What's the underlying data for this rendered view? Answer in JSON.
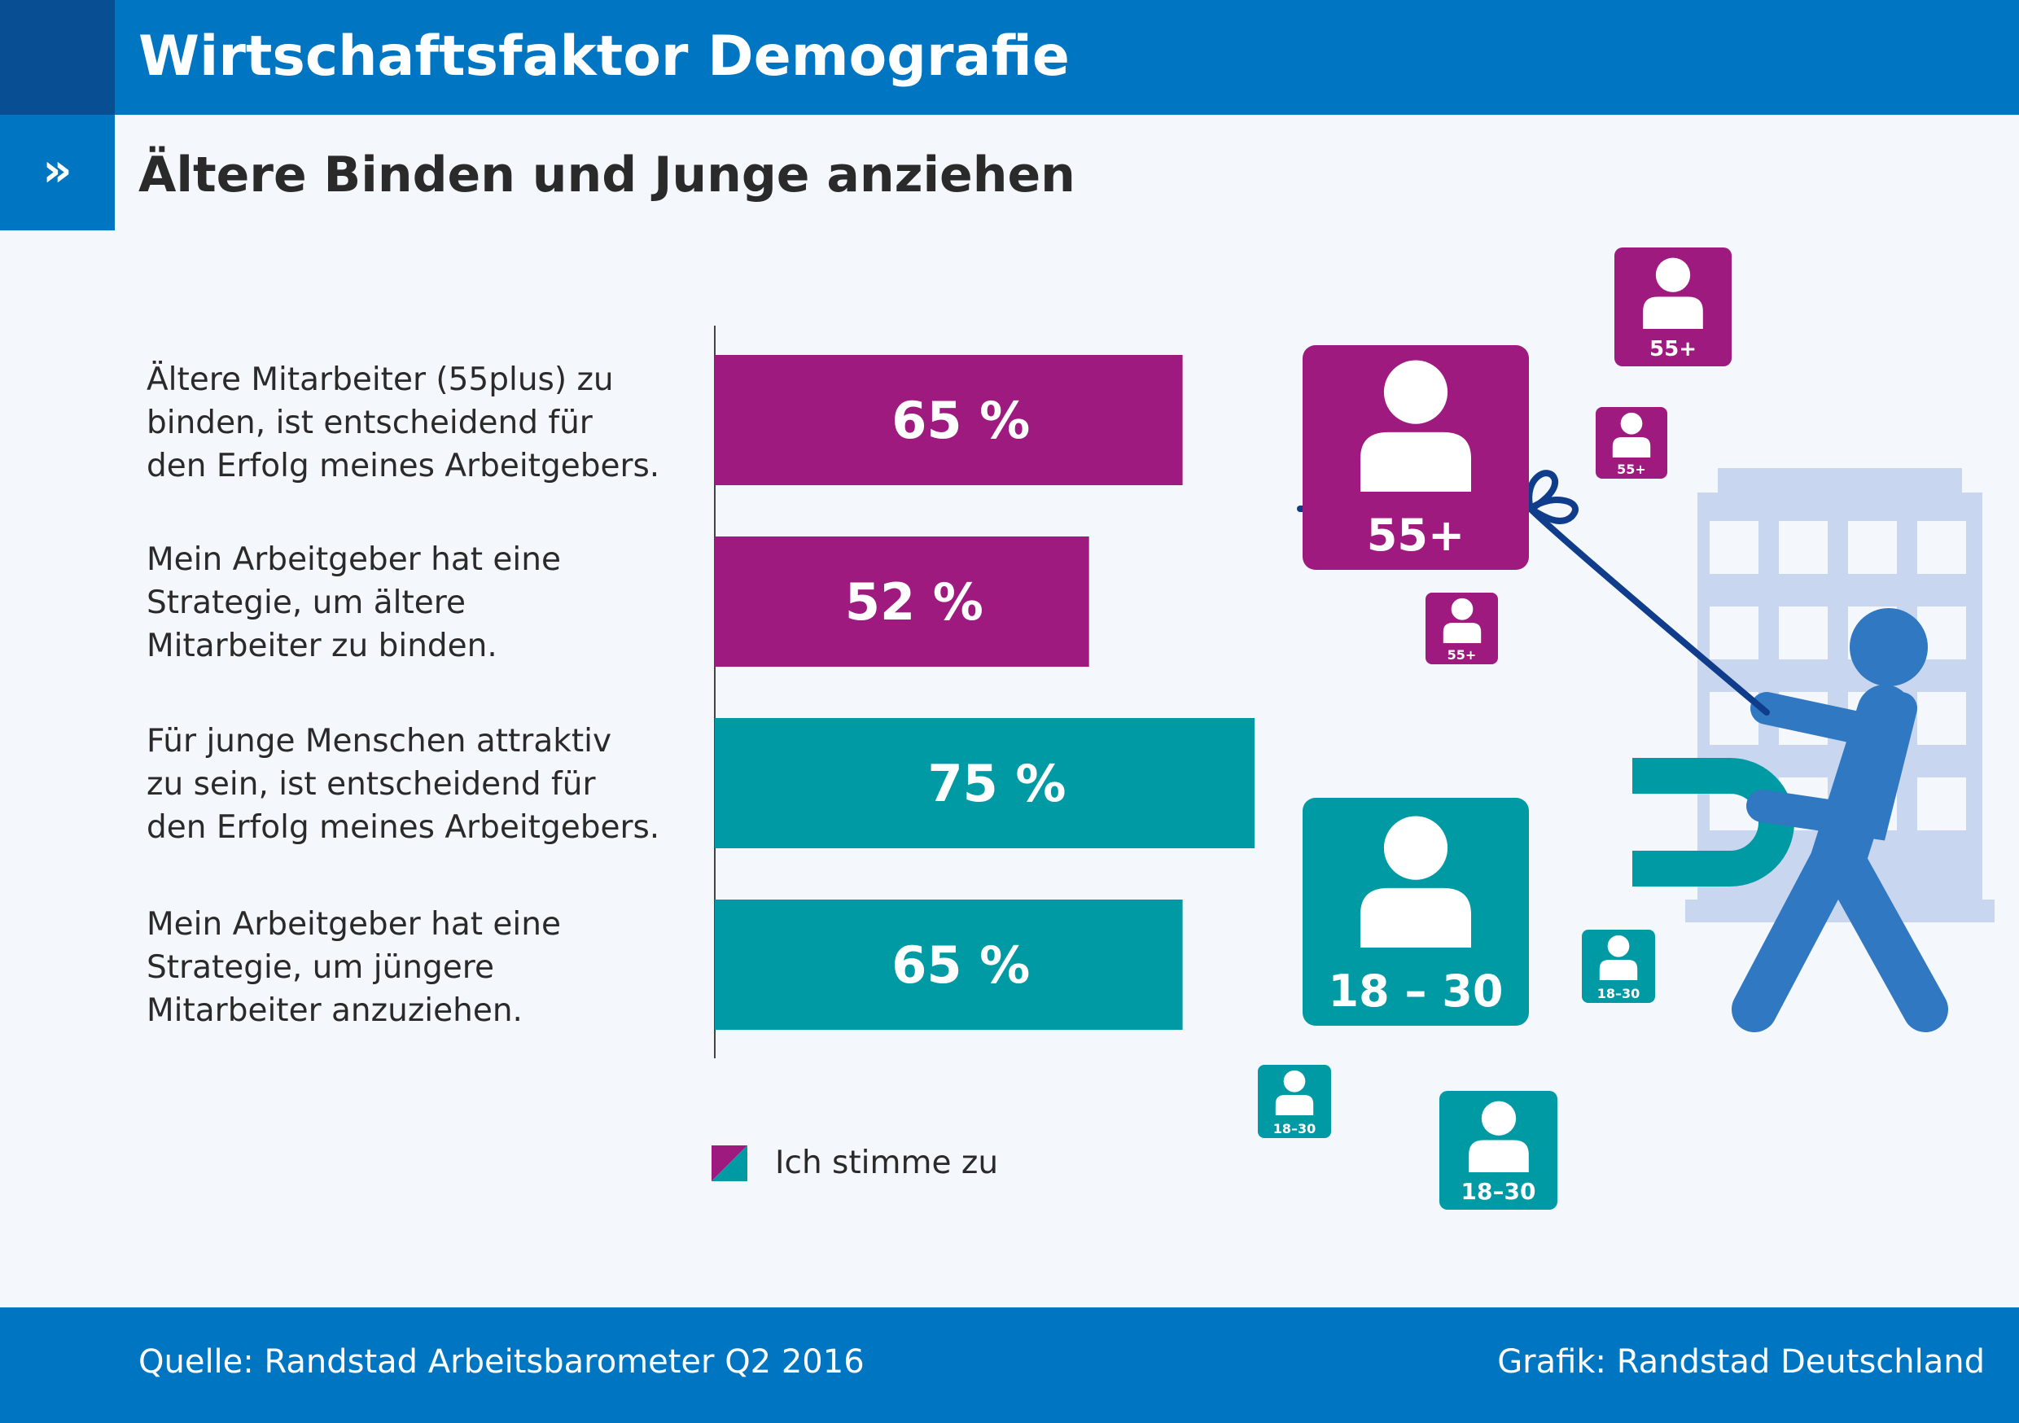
{
  "header": {
    "title": "Wirtschaftsfaktor Demografie"
  },
  "subheader": {
    "marker": "»",
    "title": "Ältere Binden und Junge anziehen"
  },
  "statements": [
    {
      "lines": [
        "Ältere Mitarbeiter (55plus) zu",
        "binden, ist entscheidend für",
        "den Erfolg meines Arbeitgebers."
      ]
    },
    {
      "lines": [
        "Mein Arbeitgeber hat eine",
        "Strategie, um ältere",
        "Mitarbeiter zu binden."
      ]
    },
    {
      "lines": [
        "Für junge Menschen attraktiv",
        "zu sein, ist entscheidend für",
        "den Erfolg meines Arbeitgebers."
      ]
    },
    {
      "lines": [
        "Mein Arbeitgeber hat eine",
        "Strategie, um jüngere",
        "Mitarbeiter anzuziehen."
      ]
    }
  ],
  "chart_data": {
    "type": "bar",
    "orientation": "horizontal",
    "categories": [
      "Ältere Mitarbeiter (55plus) zu binden, ist entscheidend für den Erfolg meines Arbeitgebers.",
      "Mein Arbeitgeber hat eine Strategie, um ältere Mitarbeiter zu binden.",
      "Für junge Menschen attraktiv zu sein, ist entscheidend für den Erfolg meines Arbeitgebers.",
      "Mein Arbeitgeber hat eine Strategie, um jüngere Mitarbeiter anzuziehen."
    ],
    "series": [
      {
        "name": "Ich stimme zu",
        "values": [
          65,
          52,
          75,
          65
        ]
      }
    ],
    "value_labels": [
      "65 %",
      "52 %",
      "75 %",
      "65 %"
    ],
    "bar_groups": [
      "55+",
      "55+",
      "18–30",
      "18–30"
    ],
    "xlim": [
      0,
      100
    ],
    "title": "Ältere Binden und Junge anziehen",
    "legend": "bottom"
  },
  "legend": {
    "label": "Ich stimme zu"
  },
  "tiles": {
    "older": "55+",
    "younger": "18 – 30",
    "younger_small": "18–30"
  },
  "colors": {
    "header": "#0075c2",
    "header_dark": "#074f92",
    "older": "#9e1a7f",
    "younger": "#009aa4",
    "figure": "#3078c1",
    "building": "#c8d7ef",
    "rope": "#0f3d8c"
  },
  "footer": {
    "source": "Quelle: Randstad Arbeitsbarometer Q2 2016",
    "credit": "Grafik: Randstad Deutschland"
  }
}
